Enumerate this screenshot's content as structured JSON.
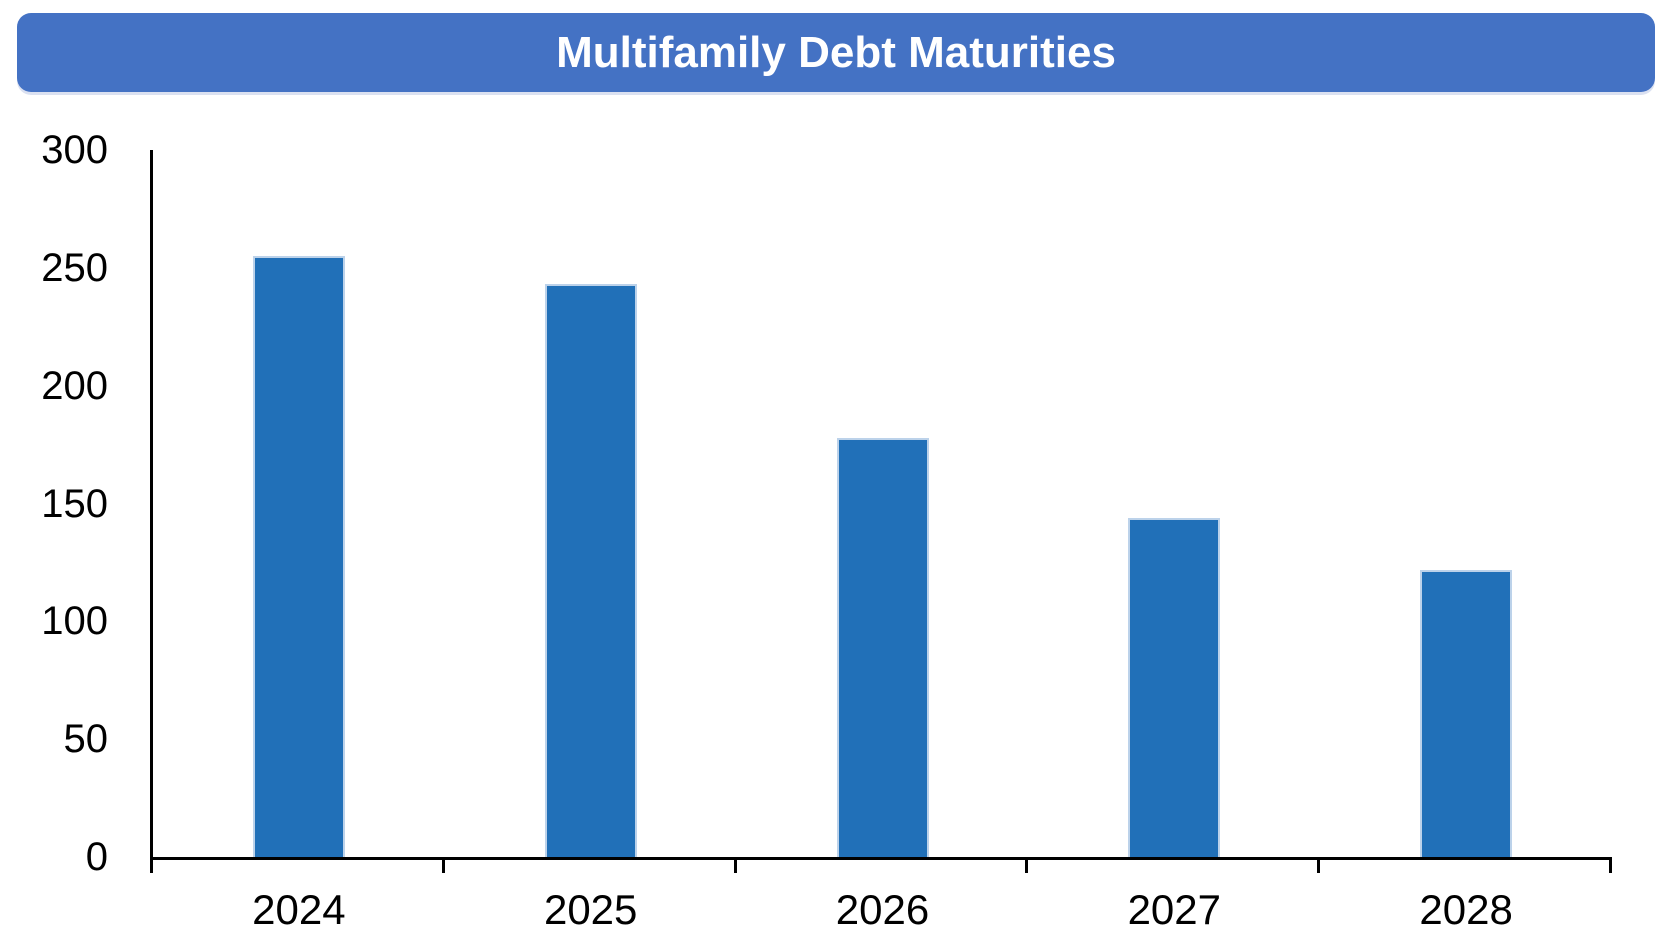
{
  "header": {
    "title": "Multifamily Debt Maturities",
    "background_color": "#4472C4",
    "text_color": "#FFFFFF"
  },
  "chart_data": {
    "type": "bar",
    "title": "Multifamily Debt Maturities",
    "categories": [
      "2024",
      "2025",
      "2026",
      "2027",
      "2028"
    ],
    "values": [
      255,
      243,
      178,
      144,
      122
    ],
    "ylim": [
      0,
      300
    ],
    "yticks": [
      0,
      50,
      100,
      150,
      200,
      250,
      300
    ],
    "ytick_labels": [
      "0",
      "50",
      "100",
      "150",
      "200",
      "250",
      "300"
    ],
    "xlabel": "",
    "ylabel": "",
    "grid": false,
    "legend": false,
    "bar_color": "#2170B8",
    "bar_border_color": "#BCD2EA",
    "axis_color": "#000000"
  }
}
